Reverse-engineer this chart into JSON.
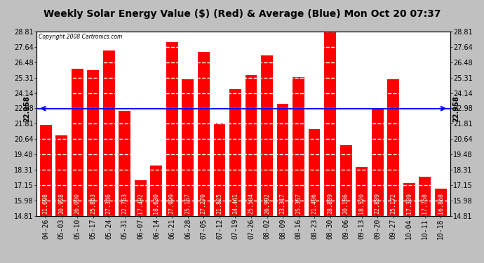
{
  "title": "Weekly Solar Energy Value ($) (Red) & Average (Blue) Mon Oct 20 07:37",
  "copyright": "Copyright 2008 Cartronics.com",
  "average": 22.958,
  "bar_color": "#ff0000",
  "avg_line_color": "#0000ff",
  "background_color": "#c0c0c0",
  "plot_bg_color": "#ffffff",
  "categories": [
    "04-26",
    "05-03",
    "05-10",
    "05-17",
    "05-24",
    "05-31",
    "06-07",
    "06-14",
    "06-21",
    "06-28",
    "07-05",
    "07-12",
    "07-19",
    "07-26",
    "08-02",
    "08-09",
    "08-16",
    "08-23",
    "08-30",
    "09-06",
    "09-13",
    "09-20",
    "09-27",
    "10-04",
    "10-11",
    "10-18"
  ],
  "values": [
    21.698,
    20.928,
    26.0,
    25.863,
    27.346,
    22.763,
    17.492,
    18.63,
    27.999,
    25.157,
    27.27,
    21.825,
    24.441,
    25.504,
    26.992,
    23.317,
    25.357,
    21.406,
    28.809,
    20.186,
    18.52,
    22.889,
    25.172,
    17.309,
    17.758,
    16.868
  ],
  "ylim_min": 14.81,
  "ylim_max": 28.81,
  "yticks": [
    14.81,
    15.98,
    17.15,
    18.31,
    19.48,
    20.64,
    21.81,
    22.98,
    24.14,
    25.31,
    26.48,
    27.64,
    28.81
  ],
  "ytick_labels": [
    "14.81",
    "15.98",
    "17.15",
    "18.31",
    "19.48",
    "20.64",
    "21.81",
    "22.98",
    "24.14",
    "25.31",
    "26.48",
    "27.64",
    "28.81"
  ],
  "grid_color": "#d0d0d0",
  "title_fontsize": 10,
  "tick_fontsize": 7,
  "bar_value_fontsize": 6,
  "avg_label": "22.958",
  "bar_width": 0.75
}
